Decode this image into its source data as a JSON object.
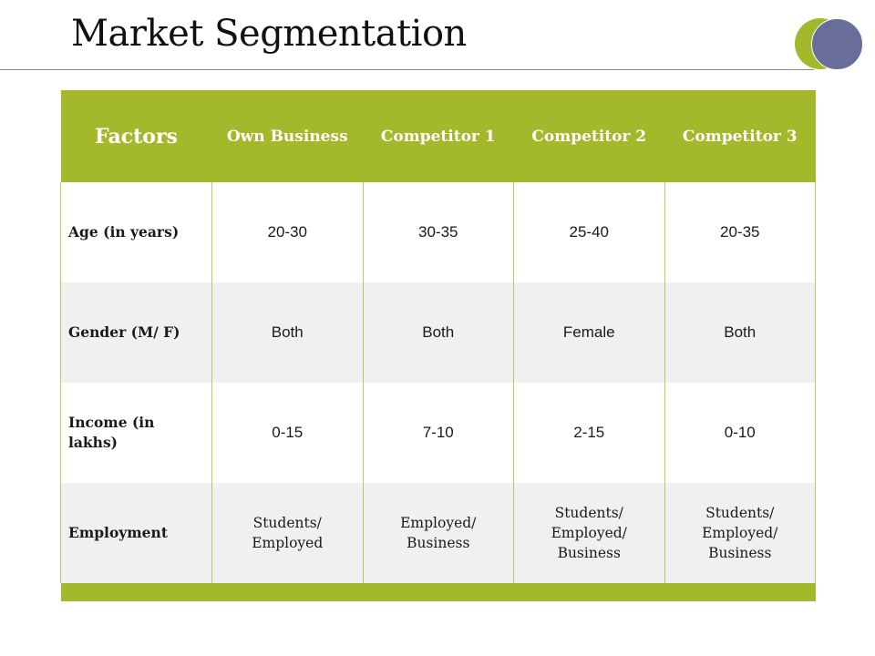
{
  "slide": {
    "title": "Market Segmentation"
  },
  "table": {
    "headers": [
      "Factors",
      "Own Business",
      "Competitor 1",
      "Competitor 2",
      "Competitor 3"
    ],
    "rows": [
      {
        "label": "Age (in years)",
        "values": [
          "20-30",
          "30-35",
          "25-40",
          "20-35"
        ]
      },
      {
        "label": "Gender (M/ F)",
        "values": [
          "Both",
          "Both",
          "Female",
          "Both"
        ]
      },
      {
        "label": "Income  (in lakhs)",
        "values": [
          "0-15",
          "7-10",
          "2-15",
          "0-10"
        ]
      },
      {
        "label": "Employment",
        "values": [
          "Students/ Employed",
          "Employed/ Business",
          "Students/ Employed/ Business",
          "Students/ Employed/ Business"
        ]
      }
    ]
  },
  "colors": {
    "accent_green": "#a3b82a",
    "accent_blue": "#686d99",
    "alt_row": "#f0f0f0"
  }
}
